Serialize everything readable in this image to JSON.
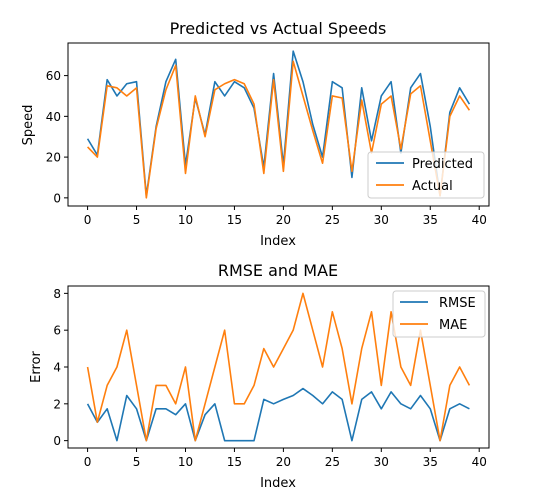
{
  "chart_data": [
    {
      "type": "line",
      "title": "Predicted vs Actual Speeds",
      "xlabel": "Index",
      "ylabel": "Speed",
      "xlim": [
        -2,
        41
      ],
      "ylim": [
        -4,
        76
      ],
      "xticks": [
        0,
        5,
        10,
        15,
        20,
        25,
        30,
        35,
        40
      ],
      "yticks": [
        0,
        20,
        40,
        60
      ],
      "legend_position": "lower-right",
      "x": [
        0,
        1,
        2,
        3,
        4,
        5,
        6,
        7,
        8,
        9,
        10,
        11,
        12,
        13,
        14,
        15,
        16,
        17,
        18,
        19,
        20,
        21,
        22,
        23,
        24,
        25,
        26,
        27,
        28,
        29,
        30,
        31,
        32,
        33,
        34,
        35,
        36,
        37,
        38,
        39
      ],
      "series": [
        {
          "name": "Predicted",
          "color": "#1f77b4",
          "values": [
            29,
            21,
            58,
            50,
            56,
            57,
            1,
            35,
            57,
            68,
            16,
            49,
            31,
            57,
            50,
            57,
            54,
            44,
            15,
            61,
            16,
            72,
            57,
            36,
            20,
            57,
            54,
            10,
            54,
            28,
            50,
            57,
            22,
            54,
            61,
            35,
            1,
            42,
            54,
            46
          ]
        },
        {
          "name": "Actual",
          "color": "#ff7f0e",
          "values": [
            25,
            20,
            55,
            54,
            50,
            54,
            0,
            34,
            53,
            65,
            12,
            50,
            30,
            53,
            56,
            58,
            56,
            46,
            12,
            58,
            13,
            67,
            50,
            33,
            17,
            50,
            49,
            13,
            48,
            22,
            46,
            50,
            24,
            51,
            55,
            28,
            1,
            40,
            50,
            43
          ]
        }
      ]
    },
    {
      "type": "line",
      "title": "RMSE and MAE",
      "xlabel": "Index",
      "ylabel": "Error",
      "xlim": [
        -2,
        41
      ],
      "ylim": [
        -0.4,
        8.4
      ],
      "xticks": [
        0,
        5,
        10,
        15,
        20,
        25,
        30,
        35,
        40
      ],
      "yticks": [
        0,
        2,
        4,
        6,
        8
      ],
      "legend_position": "upper-right",
      "x": [
        0,
        1,
        2,
        3,
        4,
        5,
        6,
        7,
        8,
        9,
        10,
        11,
        12,
        13,
        14,
        15,
        16,
        17,
        18,
        19,
        20,
        21,
        22,
        23,
        24,
        25,
        26,
        27,
        28,
        29,
        30,
        31,
        32,
        33,
        34,
        35,
        36,
        37,
        38,
        39
      ],
      "series": [
        {
          "name": "RMSE",
          "color": "#1f77b4",
          "values": [
            2,
            1,
            1.73,
            0,
            2.45,
            1.73,
            0,
            1.73,
            1.73,
            1.41,
            2,
            0,
            1.41,
            2,
            0,
            0,
            0,
            0,
            2.24,
            2,
            2.24,
            2.45,
            2.83,
            2.45,
            2,
            2.65,
            2.24,
            0,
            2.24,
            2.65,
            1.73,
            2.65,
            2,
            1.73,
            2.45,
            1.73,
            0,
            1.73,
            2,
            1.73
          ]
        },
        {
          "name": "MAE",
          "color": "#ff7f0e",
          "values": [
            4,
            1,
            3,
            4,
            6,
            3,
            0,
            3,
            3,
            2,
            4,
            0,
            2,
            4,
            6,
            2,
            2,
            3,
            5,
            4,
            5,
            6,
            8,
            6,
            4,
            7,
            5,
            2,
            5,
            7,
            3,
            7,
            4,
            3,
            6,
            3,
            0,
            3,
            4,
            3
          ]
        }
      ]
    }
  ]
}
